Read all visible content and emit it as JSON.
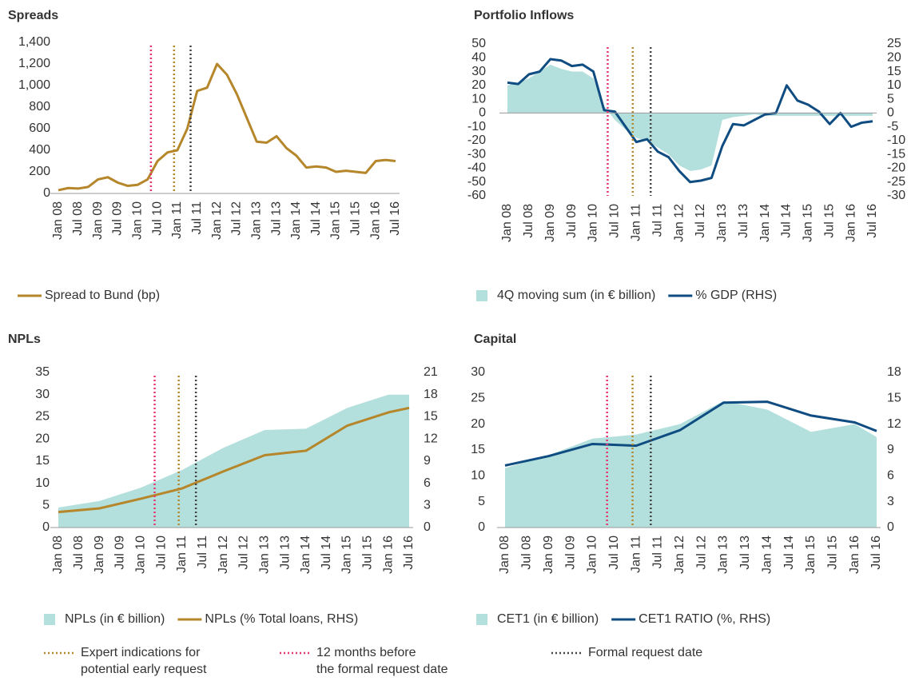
{
  "chart_data": [
    {
      "type": "combo",
      "title": "Spreads",
      "x": [
        "2008-01",
        "2008-04",
        "2008-07",
        "2008-10",
        "2009-01",
        "2009-04",
        "2009-07",
        "2009-10",
        "2010-01",
        "2010-04",
        "2010-07",
        "2010-10",
        "2011-01",
        "2011-04",
        "2011-07",
        "2011-10",
        "2012-01",
        "2012-04",
        "2012-07",
        "2012-10",
        "2013-01",
        "2013-04",
        "2013-07",
        "2013-10",
        "2014-01",
        "2014-04",
        "2014-07",
        "2014-10",
        "2015-01",
        "2015-04",
        "2015-07",
        "2015-10",
        "2016-01",
        "2016-04",
        "2016-07"
      ],
      "xlim": [
        "2008-01",
        "2016-07"
      ],
      "xticks": [
        {
          "value": "2008-01",
          "label": "Jan 08"
        },
        {
          "value": "2008-07",
          "label": "Jul 08"
        },
        {
          "value": "2009-01",
          "label": "Jan 09"
        },
        {
          "value": "2009-07",
          "label": "Jul 09"
        },
        {
          "value": "2010-01",
          "label": "Jan 10"
        },
        {
          "value": "2010-07",
          "label": "Jul 10"
        },
        {
          "value": "2011-01",
          "label": "Jan 11"
        },
        {
          "value": "2011-07",
          "label": "Jul 11"
        },
        {
          "value": "2012-01",
          "label": "Jan 12"
        },
        {
          "value": "2012-07",
          "label": "Jul 12"
        },
        {
          "value": "2013-01",
          "label": "Jan 13"
        },
        {
          "value": "2013-07",
          "label": "Jul 13"
        },
        {
          "value": "2014-01",
          "label": "Jan 14"
        },
        {
          "value": "2014-07",
          "label": "Jul 14"
        },
        {
          "value": "2015-01",
          "label": "Jan 15"
        },
        {
          "value": "2015-07",
          "label": "Jul 15"
        },
        {
          "value": "2016-01",
          "label": "Jan 16"
        },
        {
          "value": "2016-07",
          "label": "Jul 16"
        }
      ],
      "ylim": [
        0,
        1400
      ],
      "yticks": [
        0,
        200,
        400,
        600,
        800,
        {
          "value": 1000,
          "label": "1,000"
        },
        {
          "value": 1200,
          "label": "1,200"
        },
        {
          "value": 1400,
          "label": "1,400"
        }
      ],
      "legend": "bottom",
      "series": [
        {
          "name": "Spread to Bund (bp)",
          "type": "line",
          "color": "#b5862a",
          "values": [
            30,
            50,
            45,
            60,
            130,
            150,
            100,
            70,
            80,
            130,
            300,
            380,
            400,
            600,
            950,
            980,
            1200,
            1100,
            920,
            700,
            480,
            470,
            530,
            420,
            350,
            240,
            250,
            240,
            200,
            210,
            200,
            190,
            300,
            310,
            300
          ]
        }
      ]
    },
    {
      "type": "combo",
      "title": "Portfolio Inflows",
      "x": [
        "2008-01",
        "2008-04",
        "2008-07",
        "2008-10",
        "2009-01",
        "2009-04",
        "2009-07",
        "2009-10",
        "2010-01",
        "2010-04",
        "2010-07",
        "2010-10",
        "2011-01",
        "2011-04",
        "2011-07",
        "2011-10",
        "2012-01",
        "2012-04",
        "2012-07",
        "2012-10",
        "2013-01",
        "2013-04",
        "2013-07",
        "2013-10",
        "2014-01",
        "2014-04",
        "2014-07",
        "2014-10",
        "2015-01",
        "2015-04",
        "2015-07",
        "2015-10",
        "2016-01",
        "2016-04",
        "2016-07"
      ],
      "xlim": [
        "2008-01",
        "2016-07"
      ],
      "xticks": [
        {
          "value": "2008-01",
          "label": "Jan 08"
        },
        {
          "value": "2008-07",
          "label": "Jul 08"
        },
        {
          "value": "2009-01",
          "label": "Jan 09"
        },
        {
          "value": "2009-07",
          "label": "Jul 09"
        },
        {
          "value": "2010-01",
          "label": "Jan 10"
        },
        {
          "value": "2010-07",
          "label": "Jul 10"
        },
        {
          "value": "2011-01",
          "label": "Jan 11"
        },
        {
          "value": "2011-07",
          "label": "Jul 11"
        },
        {
          "value": "2012-01",
          "label": "Jan 12"
        },
        {
          "value": "2012-07",
          "label": "Jul 12"
        },
        {
          "value": "2013-01",
          "label": "Jan 13"
        },
        {
          "value": "2013-07",
          "label": "Jul 13"
        },
        {
          "value": "2014-01",
          "label": "Jan 14"
        },
        {
          "value": "2014-07",
          "label": "Jul 14"
        },
        {
          "value": "2015-01",
          "label": "Jan 15"
        },
        {
          "value": "2015-07",
          "label": "Jul 15"
        },
        {
          "value": "2016-01",
          "label": "Jan 16"
        },
        {
          "value": "2016-07",
          "label": "Jul 16"
        }
      ],
      "ylim": [
        -60,
        50
      ],
      "yticks": [
        -60,
        -50,
        -40,
        -30,
        -20,
        -10,
        0,
        10,
        20,
        30,
        40,
        50
      ],
      "y2lim": [
        -30,
        25
      ],
      "y2ticks": [
        -30,
        -25,
        -20,
        -15,
        -10,
        -5,
        0,
        5,
        10,
        15,
        20,
        25
      ],
      "legend": "bottom",
      "series": [
        {
          "name": "4Q moving sum (in € billion)",
          "type": "area",
          "color": "#b3dfdc",
          "values": [
            20,
            22,
            25,
            30,
            35,
            32,
            30,
            30,
            25,
            5,
            -5,
            -12,
            -18,
            -20,
            -25,
            -30,
            -38,
            -42,
            -41,
            -38,
            -5,
            -3,
            -2,
            -1,
            -2,
            -2,
            -2,
            -2,
            -2,
            -2,
            -2,
            -2,
            -2,
            -2,
            -2
          ]
        },
        {
          "name": "% GDP (RHS)",
          "type": "line",
          "axis": "y2",
          "color": "#0f4c81",
          "values": [
            11,
            10.5,
            14,
            15,
            19.5,
            19,
            17,
            17.5,
            15,
            1,
            0.5,
            -5,
            -10.5,
            -9.5,
            -14,
            -16,
            -21,
            -25,
            -24.5,
            -23.5,
            -12,
            -4,
            -4.5,
            -2.5,
            -0.5,
            0,
            10,
            4.5,
            3,
            0.5,
            -4,
            0,
            -5,
            -3.5,
            -3
          ]
        }
      ]
    },
    {
      "type": "combo",
      "title": "NPLs",
      "x": [
        "2008-01",
        "2009-01",
        "2010-01",
        "2011-01",
        "2012-01",
        "2013-01",
        "2014-01",
        "2015-01",
        "2016-01",
        "2016-07"
      ],
      "xlim": [
        "2008-01",
        "2016-07"
      ],
      "xticks": [
        {
          "value": "2008-01",
          "label": "Jan 08"
        },
        {
          "value": "2008-07",
          "label": "Jul 08"
        },
        {
          "value": "2009-01",
          "label": "Jan 09"
        },
        {
          "value": "2009-07",
          "label": "Jul 09"
        },
        {
          "value": "2010-01",
          "label": "Jan 10"
        },
        {
          "value": "2010-07",
          "label": "Jul 10"
        },
        {
          "value": "2011-01",
          "label": "Jan 11"
        },
        {
          "value": "2011-07",
          "label": "Jul 11"
        },
        {
          "value": "2012-01",
          "label": "Jan 12"
        },
        {
          "value": "2012-07",
          "label": "Jul 12"
        },
        {
          "value": "2013-01",
          "label": "Jan 13"
        },
        {
          "value": "2013-07",
          "label": "Jul 13"
        },
        {
          "value": "2014-01",
          "label": "Jan 14"
        },
        {
          "value": "2014-07",
          "label": "Jul 14"
        },
        {
          "value": "2015-01",
          "label": "Jan 15"
        },
        {
          "value": "2015-07",
          "label": "Jul 15"
        },
        {
          "value": "2016-01",
          "label": "Jan 16"
        },
        {
          "value": "2016-07",
          "label": "Jul 16"
        }
      ],
      "ylim": [
        0,
        35
      ],
      "yticks": [
        0,
        5,
        10,
        15,
        20,
        25,
        30,
        35
      ],
      "y2lim": [
        0,
        21
      ],
      "y2ticks": [
        0,
        3,
        6,
        9,
        12,
        15,
        18,
        21
      ],
      "legend": "bottom",
      "series": [
        {
          "name": "NPLs (in € billion)",
          "type": "area",
          "color": "#b3dfdc",
          "values": [
            4.5,
            6,
            9,
            13,
            18,
            22,
            22.3,
            27,
            30,
            30
          ]
        },
        {
          "name": "NPLs (% Total loans, RHS)",
          "type": "line",
          "axis": "y2",
          "color": "#b5862a",
          "values": [
            2.1,
            2.6,
            3.9,
            5.3,
            7.6,
            9.8,
            10.4,
            13.8,
            15.6,
            16.2
          ]
        }
      ]
    },
    {
      "type": "combo",
      "title": "Capital",
      "x": [
        "2008-01",
        "2009-01",
        "2010-01",
        "2011-01",
        "2012-01",
        "2013-01",
        "2014-01",
        "2015-01",
        "2016-01",
        "2016-07"
      ],
      "xlim": [
        "2008-01",
        "2016-07"
      ],
      "xticks": [
        {
          "value": "2008-01",
          "label": "Jan 08"
        },
        {
          "value": "2008-07",
          "label": "Jul 08"
        },
        {
          "value": "2009-01",
          "label": "Jan 09"
        },
        {
          "value": "2009-07",
          "label": "Jul 09"
        },
        {
          "value": "2010-01",
          "label": "Jan 10"
        },
        {
          "value": "2010-07",
          "label": "Jul 10"
        },
        {
          "value": "2011-01",
          "label": "Jan 11"
        },
        {
          "value": "2011-07",
          "label": "Jul 11"
        },
        {
          "value": "2012-01",
          "label": "Jan 12"
        },
        {
          "value": "2012-07",
          "label": "Jul 12"
        },
        {
          "value": "2013-01",
          "label": "Jan 13"
        },
        {
          "value": "2013-07",
          "label": "Jul 13"
        },
        {
          "value": "2014-01",
          "label": "Jan 14"
        },
        {
          "value": "2014-07",
          "label": "Jul 14"
        },
        {
          "value": "2015-01",
          "label": "Jan 15"
        },
        {
          "value": "2015-07",
          "label": "Jul 15"
        },
        {
          "value": "2016-01",
          "label": "Jan 16"
        },
        {
          "value": "2016-07",
          "label": "Jul 16"
        }
      ],
      "ylim": [
        0,
        30
      ],
      "yticks": [
        0,
        5,
        10,
        15,
        20,
        25,
        30
      ],
      "y2lim": [
        0,
        18
      ],
      "y2ticks": [
        0,
        3,
        6,
        9,
        12,
        15,
        18
      ],
      "legend": "bottom",
      "series": [
        {
          "name": "CET1 (in € billion)",
          "type": "area",
          "color": "#b3dfdc",
          "values": [
            11.5,
            14,
            17.2,
            18,
            20,
            24.5,
            22.8,
            18.5,
            20,
            17.5
          ]
        },
        {
          "name": "CET1 RATIO (%, RHS)",
          "type": "line",
          "axis": "y2",
          "color": "#0f4c81",
          "values": [
            7.2,
            8.3,
            9.7,
            9.5,
            11.3,
            14.5,
            14.6,
            13,
            12.2,
            11.2
          ]
        }
      ]
    }
  ],
  "reference_lines": [
    {
      "name": [
        "Expert indications for",
        "potential early request"
      ],
      "color": "#b5862a",
      "x": "2010-12"
    },
    {
      "name": [
        "12 months before",
        "the formal request date"
      ],
      "color": "#e8336e",
      "x": "2010-05"
    },
    {
      "name": [
        "Formal request date"
      ],
      "color": "#444444",
      "x": "2011-05"
    }
  ]
}
